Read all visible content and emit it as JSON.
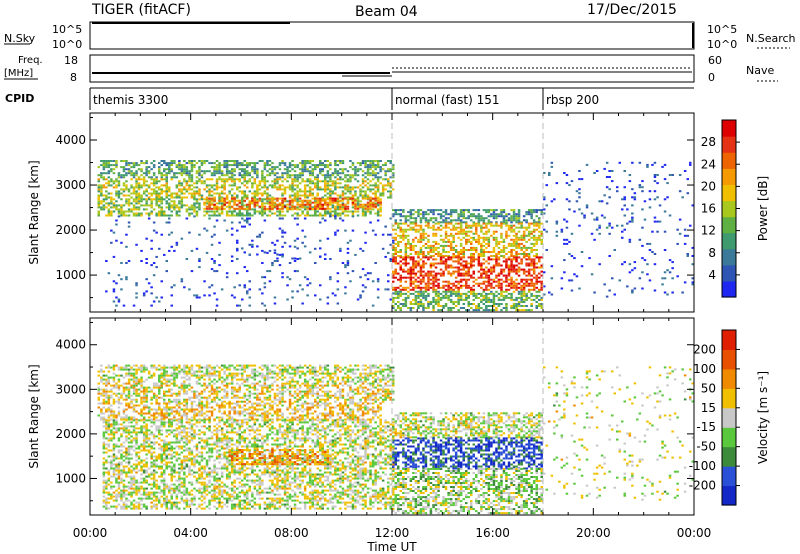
{
  "header": {
    "station": "TIGER (fitACF)",
    "beam": "Beam 04",
    "date": "17/Dec/2015"
  },
  "top_panels": {
    "nsky": {
      "left_label": "N.Sky",
      "ticks": [
        "10^5",
        "10^0"
      ],
      "right_label": "N.Search"
    },
    "freq": {
      "left_label": "Freq.",
      "unit": "[MHz]",
      "ticks": [
        "18",
        "8"
      ],
      "right_ticks": [
        "60",
        "0"
      ],
      "right_label": "Nave"
    },
    "cpid": {
      "label": "CPID",
      "segments": [
        {
          "name": "themis 3300",
          "start": 0,
          "end": 12
        },
        {
          "name": "normal (fast) 151",
          "start": 12,
          "end": 18
        },
        {
          "name": "rbsp 200",
          "start": 18,
          "end": 24
        }
      ]
    }
  },
  "chart_data": [
    {
      "type": "heatmap",
      "title": "",
      "xlabel": "Time UT",
      "ylabel": "Slant Range [km]",
      "xlim": [
        0,
        24
      ],
      "ylim": [
        180,
        4600
      ],
      "x_ticks": [
        "00:00",
        "04:00",
        "08:00",
        "12:00",
        "16:00",
        "20:00",
        "00:00"
      ],
      "y_ticks": [
        "1000",
        "2000",
        "3000",
        "4000"
      ],
      "colorbar": {
        "label": "Power [dB]",
        "range": [
          0,
          32
        ],
        "ticks": [
          "4",
          "8",
          "12",
          "16",
          "20",
          "24",
          "28"
        ],
        "colors": [
          "#1e28f0",
          "#2e54b4",
          "#3a7a98",
          "#3f9a70",
          "#5fb042",
          "#a8c81e",
          "#f0c000",
          "#f59a00",
          "#ee6400",
          "#e63214",
          "#dc0000"
        ]
      },
      "regions": [
        {
          "t0": 0.3,
          "t1": 12.0,
          "r0": 3150,
          "r1": 3550,
          "level": 0.35
        },
        {
          "t0": 0.3,
          "t1": 12.0,
          "r0": 2700,
          "r1": 3150,
          "level": 0.5
        },
        {
          "t0": 0.3,
          "t1": 11.5,
          "r0": 2300,
          "r1": 2700,
          "level": 0.45
        },
        {
          "t0": 4.5,
          "t1": 11.5,
          "r0": 2450,
          "r1": 2700,
          "level": 0.75
        },
        {
          "t0": 0.5,
          "t1": 12.0,
          "r0": 300,
          "r1": 2300,
          "level": 0.1
        },
        {
          "t0": 5.5,
          "t1": 9.5,
          "r0": 1300,
          "r1": 1650,
          "level": 0.1
        },
        {
          "t0": 12.0,
          "t1": 18.0,
          "r0": 2150,
          "r1": 2450,
          "level": 0.3
        },
        {
          "t0": 12.0,
          "t1": 18.0,
          "r0": 1400,
          "r1": 2150,
          "level": 0.6
        },
        {
          "t0": 12.0,
          "t1": 18.0,
          "r0": 650,
          "r1": 1400,
          "level": 0.85
        },
        {
          "t0": 12.0,
          "t1": 18.0,
          "r0": 200,
          "r1": 650,
          "level": 0.4
        },
        {
          "t0": 18.0,
          "t1": 24.0,
          "r0": 500,
          "r1": 3500,
          "level": 0.1
        }
      ]
    },
    {
      "type": "heatmap",
      "title": "",
      "xlabel": "Time UT",
      "ylabel": "Slant Range [km]",
      "xlim": [
        0,
        24
      ],
      "ylim": [
        180,
        4600
      ],
      "x_ticks": [
        "00:00",
        "04:00",
        "08:00",
        "12:00",
        "16:00",
        "20:00",
        "00:00"
      ],
      "y_ticks": [
        "1000",
        "2000",
        "3000",
        "4000"
      ],
      "colorbar": {
        "label": "Velocity [m s⁻¹]",
        "range": [
          -250,
          250
        ],
        "ticks": [
          "200",
          "100",
          "50",
          "15",
          "-15",
          "-50",
          "-100",
          "-200"
        ],
        "colors": [
          "#1428c8",
          "#2a50d8",
          "#3c8a3c",
          "#5ac83c",
          "#c8c8c8",
          "#f0c000",
          "#f08a00",
          "#e85000",
          "#e01e00"
        ]
      },
      "regions": [
        {
          "t0": 0.3,
          "t1": 12.0,
          "r0": 3150,
          "r1": 3550,
          "level": 0.5
        },
        {
          "t0": 0.3,
          "t1": 12.0,
          "r0": 2700,
          "r1": 3150,
          "level": 0.55
        },
        {
          "t0": 0.3,
          "t1": 11.5,
          "r0": 2300,
          "r1": 2700,
          "level": 0.6
        },
        {
          "t0": 0.5,
          "t1": 12.0,
          "r0": 300,
          "r1": 2300,
          "level": 0.5
        },
        {
          "t0": 5.5,
          "t1": 9.5,
          "r0": 1300,
          "r1": 1650,
          "level": 0.7
        },
        {
          "t0": 12.0,
          "t1": 18.0,
          "r0": 1900,
          "r1": 2450,
          "level": 0.5
        },
        {
          "t0": 12.0,
          "t1": 18.0,
          "r0": 1200,
          "r1": 1900,
          "level": 0.15
        },
        {
          "t0": 12.0,
          "t1": 18.0,
          "r0": 650,
          "r1": 1200,
          "level": 0.45
        },
        {
          "t0": 12.0,
          "t1": 18.0,
          "r0": 200,
          "r1": 650,
          "level": 0.45
        },
        {
          "t0": 18.0,
          "t1": 24.0,
          "r0": 500,
          "r1": 3500,
          "level": 0.5
        }
      ]
    }
  ]
}
